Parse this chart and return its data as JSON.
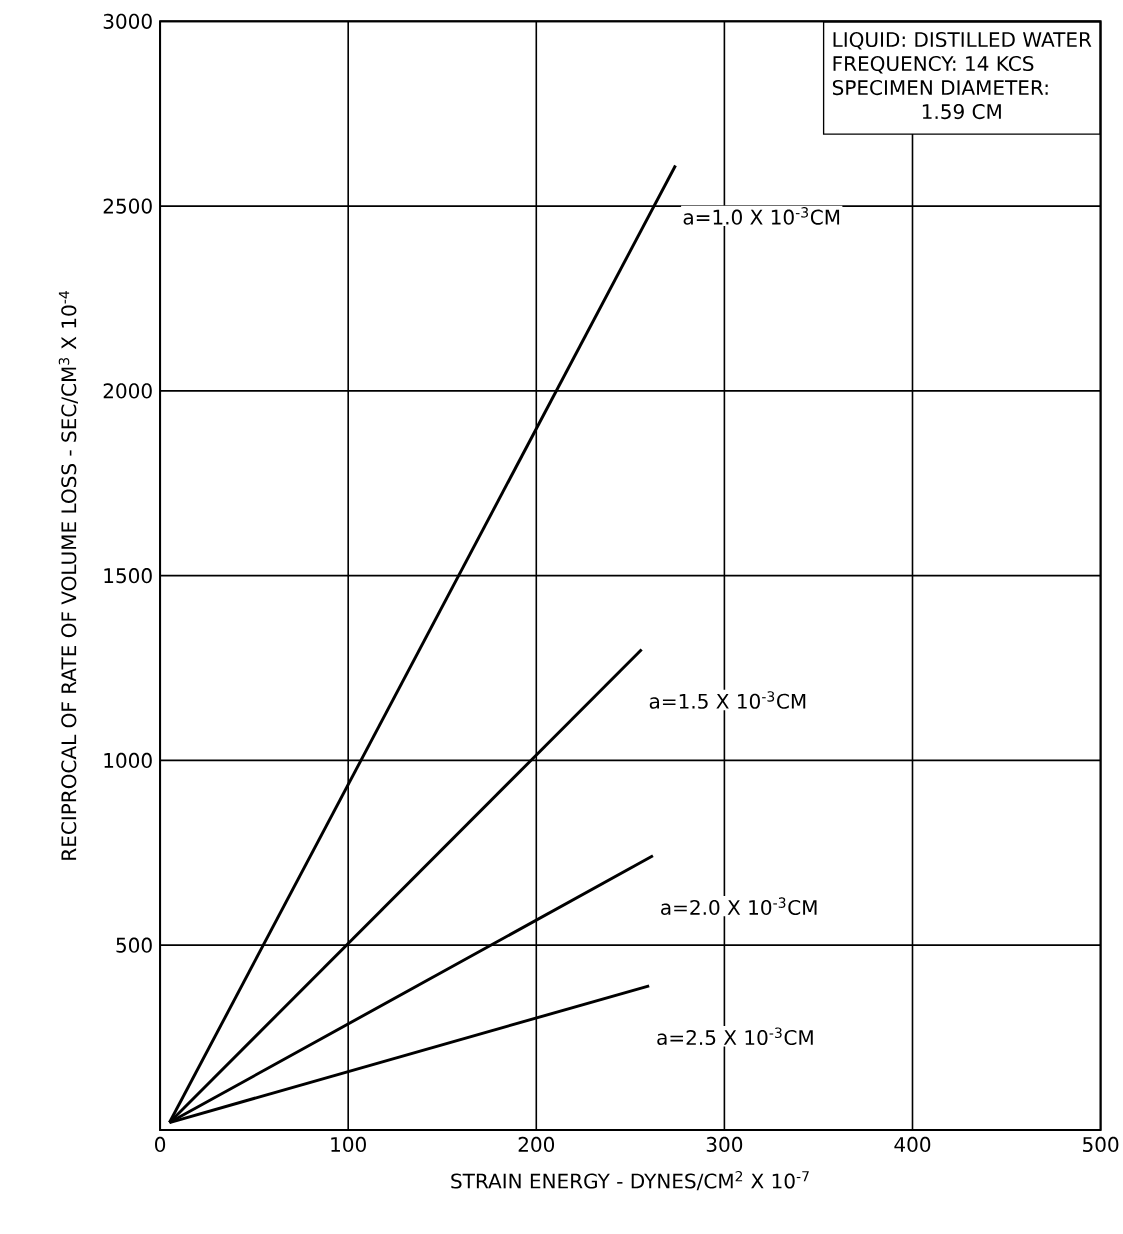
{
  "chart_data": {
    "type": "line",
    "xlabel": "STRAIN ENERGY - DYNES/CM$^{2}$ X 10$^{-7}$",
    "ylabel": "RECIPROCAL OF RATE OF VOLUME LOSS - SEC/CM$^{3}$ X 10$^{-4}$",
    "xlim": [
      0,
      500
    ],
    "ylim": [
      0,
      3000
    ],
    "xticks": [
      0,
      100,
      200,
      300,
      400,
      500
    ],
    "yticks": [
      {
        "value": 0,
        "label": null
      },
      500,
      1000,
      1500,
      2000,
      2500,
      3000
    ],
    "grid": true,
    "marker": "none",
    "line_style": "solid",
    "annotations": [
      "LIQUID: DISTILLED WATER",
      "FREQUENCY: 14 KCS",
      "SPECIMEN DIAMETER:",
      "1.59 CM"
    ],
    "series": [
      {
        "name": "a=1.0 X 10$^{-3}$CM",
        "color": "#000000",
        "x": [
          5,
          274
        ],
        "values": [
          20,
          2610
        ]
      },
      {
        "name": "a=1.5 X 10$^{-3}$CM",
        "color": "#000000",
        "x": [
          5,
          256
        ],
        "values": [
          20,
          1300
        ]
      },
      {
        "name": "a=2.0 X 10$^{-3}$CM",
        "color": "#000000",
        "x": [
          5,
          262
        ],
        "values": [
          20,
          742
        ]
      },
      {
        "name": "a=2.5 X 10$^{-3}$CM",
        "color": "#000000",
        "x": [
          5,
          260
        ],
        "values": [
          20,
          390
        ]
      }
    ]
  }
}
